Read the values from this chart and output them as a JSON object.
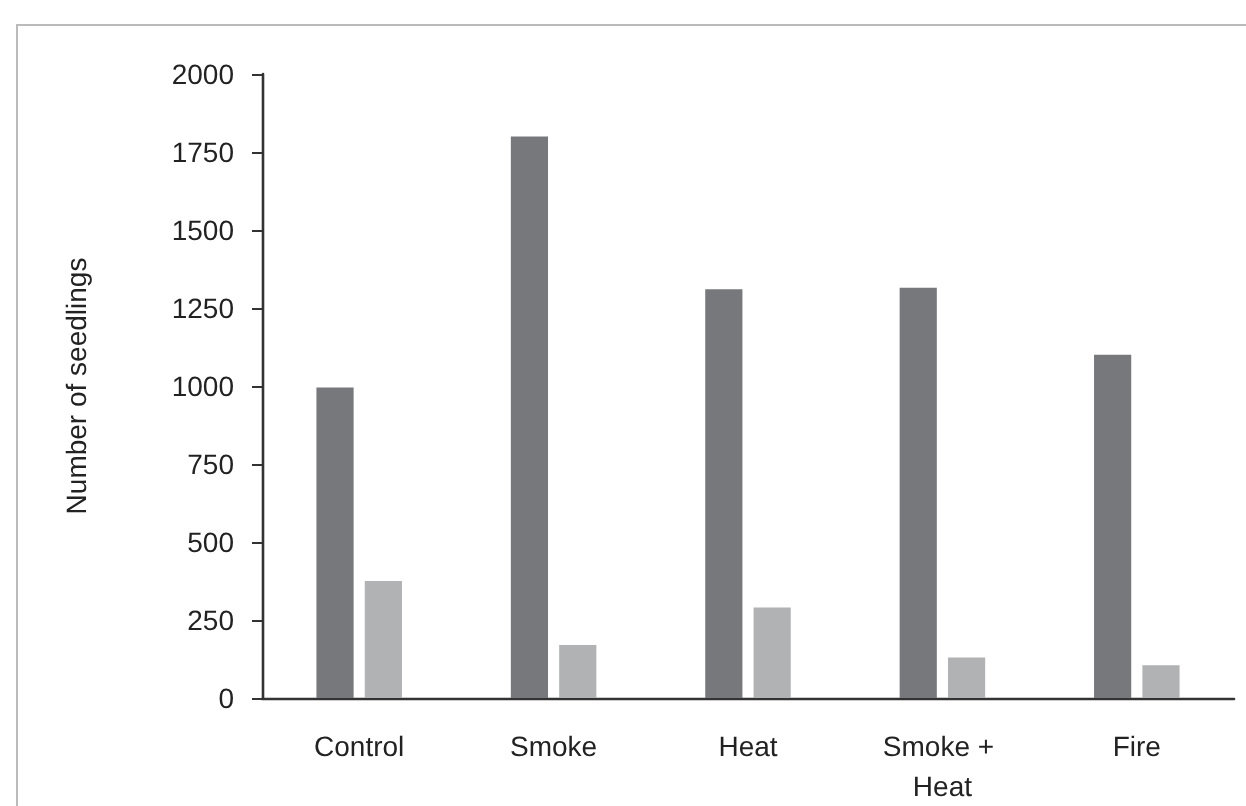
{
  "chart_data": {
    "type": "bar",
    "ylabel": "Number of seedlings",
    "categories": [
      "Control",
      "Smoke",
      "Heat",
      "Smoke + Heat",
      "Fire"
    ],
    "series": [
      {
        "color": "#77787b",
        "values": [
          995,
          1800,
          1310,
          1315,
          1100
        ]
      },
      {
        "color": "#b1b2b4",
        "values": [
          375,
          170,
          290,
          130,
          105
        ]
      }
    ],
    "ylim": [
      0,
      2000
    ],
    "yticks": [
      0,
      250,
      500,
      750,
      1000,
      1250,
      1500,
      1750,
      2000
    ],
    "grid": false
  }
}
